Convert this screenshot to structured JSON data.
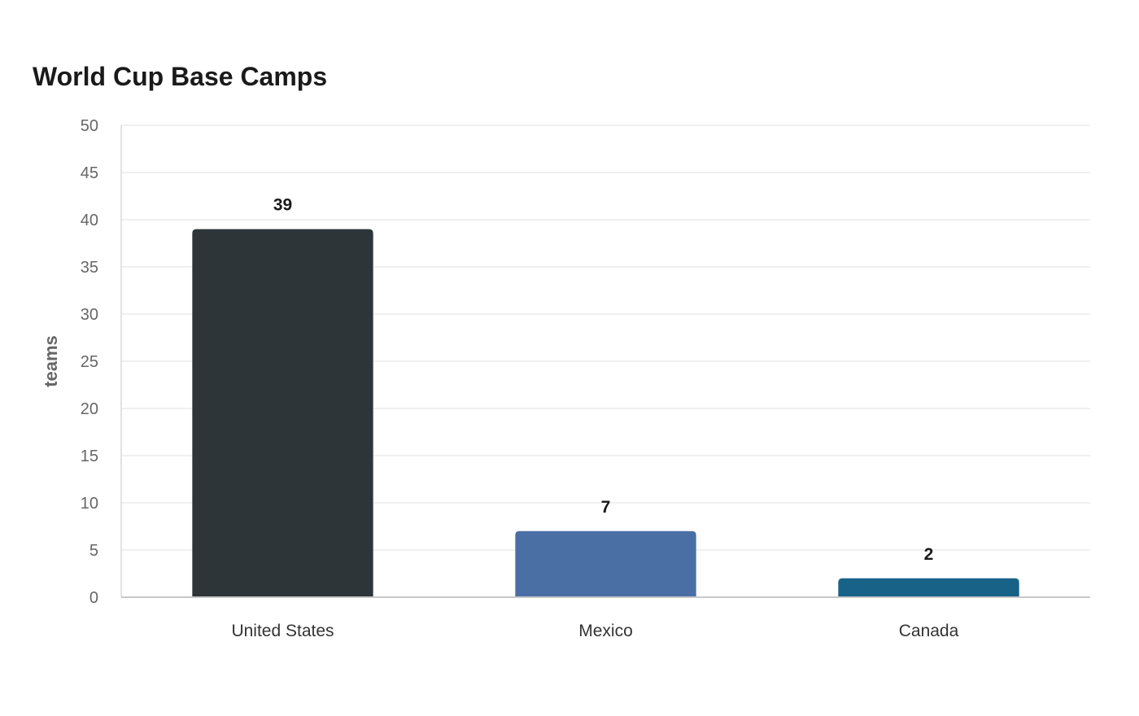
{
  "chart_data": {
    "type": "bar",
    "title": "World Cup Base Camps",
    "xlabel": "",
    "ylabel": "teams",
    "categories": [
      "United States",
      "Mexico",
      "Canada"
    ],
    "values": [
      39,
      7,
      2
    ],
    "data_labels": [
      "39",
      "7",
      "2"
    ],
    "colors": [
      "#2e3538",
      "#4a6fa5",
      "#186187"
    ],
    "ylim": [
      0,
      50
    ],
    "yticks": [
      0,
      5,
      10,
      15,
      20,
      25,
      30,
      35,
      40,
      45,
      50
    ],
    "grid": true,
    "legend": "none"
  }
}
